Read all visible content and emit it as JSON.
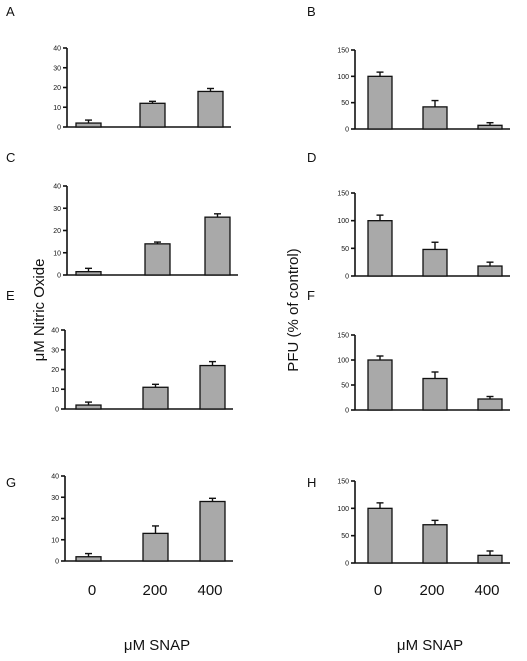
{
  "figure": {
    "ylabel_left": "μM Nitric Oxide",
    "ylabel_right": "PFU (% of control)",
    "xlabel": "μM SNAP",
    "categories": [
      "0",
      "200",
      "400"
    ]
  },
  "chart_data": [
    {
      "type": "bar",
      "panel": "A",
      "categories": [
        "0",
        "200",
        "400"
      ],
      "values": [
        2,
        12,
        18
      ],
      "errors": [
        1.5,
        1,
        1.5
      ],
      "ylim": [
        0,
        40
      ],
      "yticks": [
        0,
        10,
        20,
        30,
        40
      ]
    },
    {
      "type": "bar",
      "panel": "B",
      "categories": [
        "0",
        "200",
        "400"
      ],
      "values": [
        100,
        42,
        7
      ],
      "errors": [
        8,
        12,
        5
      ],
      "ylim": [
        0,
        150
      ],
      "yticks": [
        0,
        50,
        100,
        150
      ]
    },
    {
      "type": "bar",
      "panel": "C",
      "categories": [
        "0",
        "200",
        "400"
      ],
      "values": [
        1.5,
        14,
        26
      ],
      "errors": [
        1.5,
        0.8,
        1.5
      ],
      "ylim": [
        0,
        40
      ],
      "yticks": [
        0,
        10,
        20,
        30,
        40
      ]
    },
    {
      "type": "bar",
      "panel": "D",
      "categories": [
        "0",
        "200",
        "400"
      ],
      "values": [
        100,
        48,
        18
      ],
      "errors": [
        10,
        13,
        7
      ],
      "ylim": [
        0,
        150
      ],
      "yticks": [
        0,
        50,
        100,
        150
      ]
    },
    {
      "type": "bar",
      "panel": "E",
      "categories": [
        "0",
        "200",
        "400"
      ],
      "values": [
        2,
        11,
        22
      ],
      "errors": [
        1.5,
        1.5,
        2
      ],
      "ylim": [
        0,
        40
      ],
      "yticks": [
        0,
        10,
        20,
        30,
        40
      ]
    },
    {
      "type": "bar",
      "panel": "F",
      "categories": [
        "0",
        "200",
        "400"
      ],
      "values": [
        100,
        63,
        22
      ],
      "errors": [
        8,
        13,
        5
      ],
      "ylim": [
        0,
        150
      ],
      "yticks": [
        0,
        50,
        100,
        150
      ]
    },
    {
      "type": "bar",
      "panel": "G",
      "categories": [
        "0",
        "200",
        "400"
      ],
      "values": [
        2,
        13,
        28
      ],
      "errors": [
        1.5,
        3.5,
        1.5
      ],
      "ylim": [
        0,
        40
      ],
      "yticks": [
        0,
        10,
        20,
        30,
        40
      ]
    },
    {
      "type": "bar",
      "panel": "H",
      "categories": [
        "0",
        "200",
        "400"
      ],
      "values": [
        100,
        70,
        14
      ],
      "errors": [
        10,
        8,
        8
      ],
      "ylim": [
        0,
        150
      ],
      "yticks": [
        0,
        50,
        100,
        150
      ]
    }
  ]
}
